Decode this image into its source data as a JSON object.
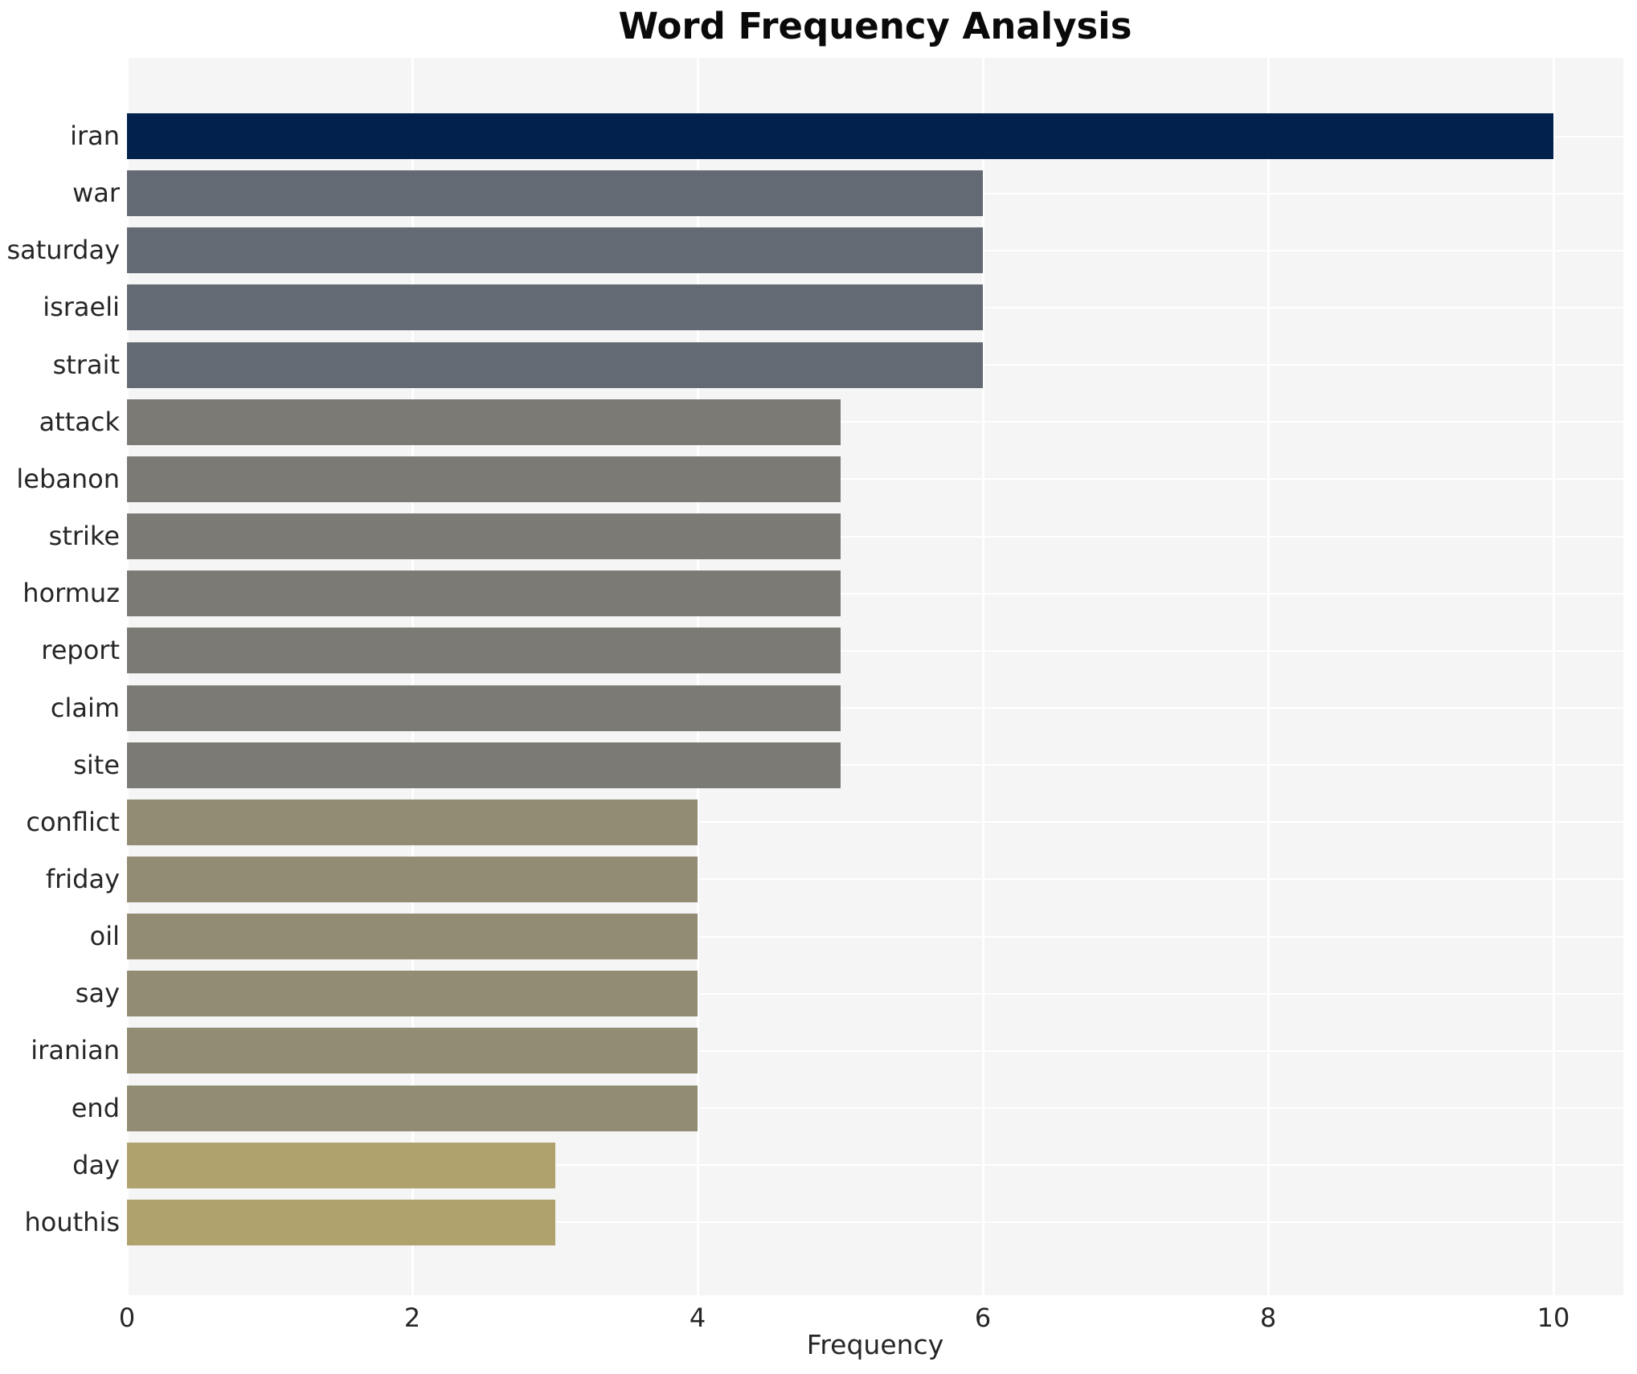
{
  "page": {
    "title": "Word Frequency Analysis"
  },
  "chart_data": {
    "type": "bar",
    "orientation": "horizontal",
    "title": "Word Frequency Analysis",
    "xlabel": "Frequency",
    "ylabel": "",
    "categories": [
      "iran",
      "war",
      "saturday",
      "israeli",
      "strait",
      "attack",
      "lebanon",
      "strike",
      "hormuz",
      "report",
      "claim",
      "site",
      "conflict",
      "friday",
      "oil",
      "say",
      "iranian",
      "end",
      "day",
      "houthis"
    ],
    "values": [
      10,
      6,
      6,
      6,
      6,
      5,
      5,
      5,
      5,
      5,
      5,
      5,
      4,
      4,
      4,
      4,
      4,
      4,
      3,
      3
    ],
    "bar_colors": [
      "#02224d",
      "#646a74",
      "#646a74",
      "#646a74",
      "#646a74",
      "#7b7a74",
      "#7b7a74",
      "#7b7a74",
      "#7b7a74",
      "#7b7a74",
      "#7b7a74",
      "#7b7a74",
      "#938c74",
      "#938c74",
      "#938c74",
      "#938c74",
      "#938c74",
      "#938c74",
      "#afa26d",
      "#afa26d"
    ],
    "palette_by_value": {
      "10": "#02224d",
      "6": "#646a74",
      "5": "#7b7a74",
      "4": "#938c74",
      "3": "#afa26d"
    },
    "xticks": [
      0,
      2,
      4,
      6,
      8,
      10
    ],
    "xlim": [
      0,
      10.49
    ],
    "grid": true,
    "legend": false,
    "plot_bg_color": "#f5f5f6",
    "grid_color": "#ffffff",
    "text_color": "#262626"
  }
}
